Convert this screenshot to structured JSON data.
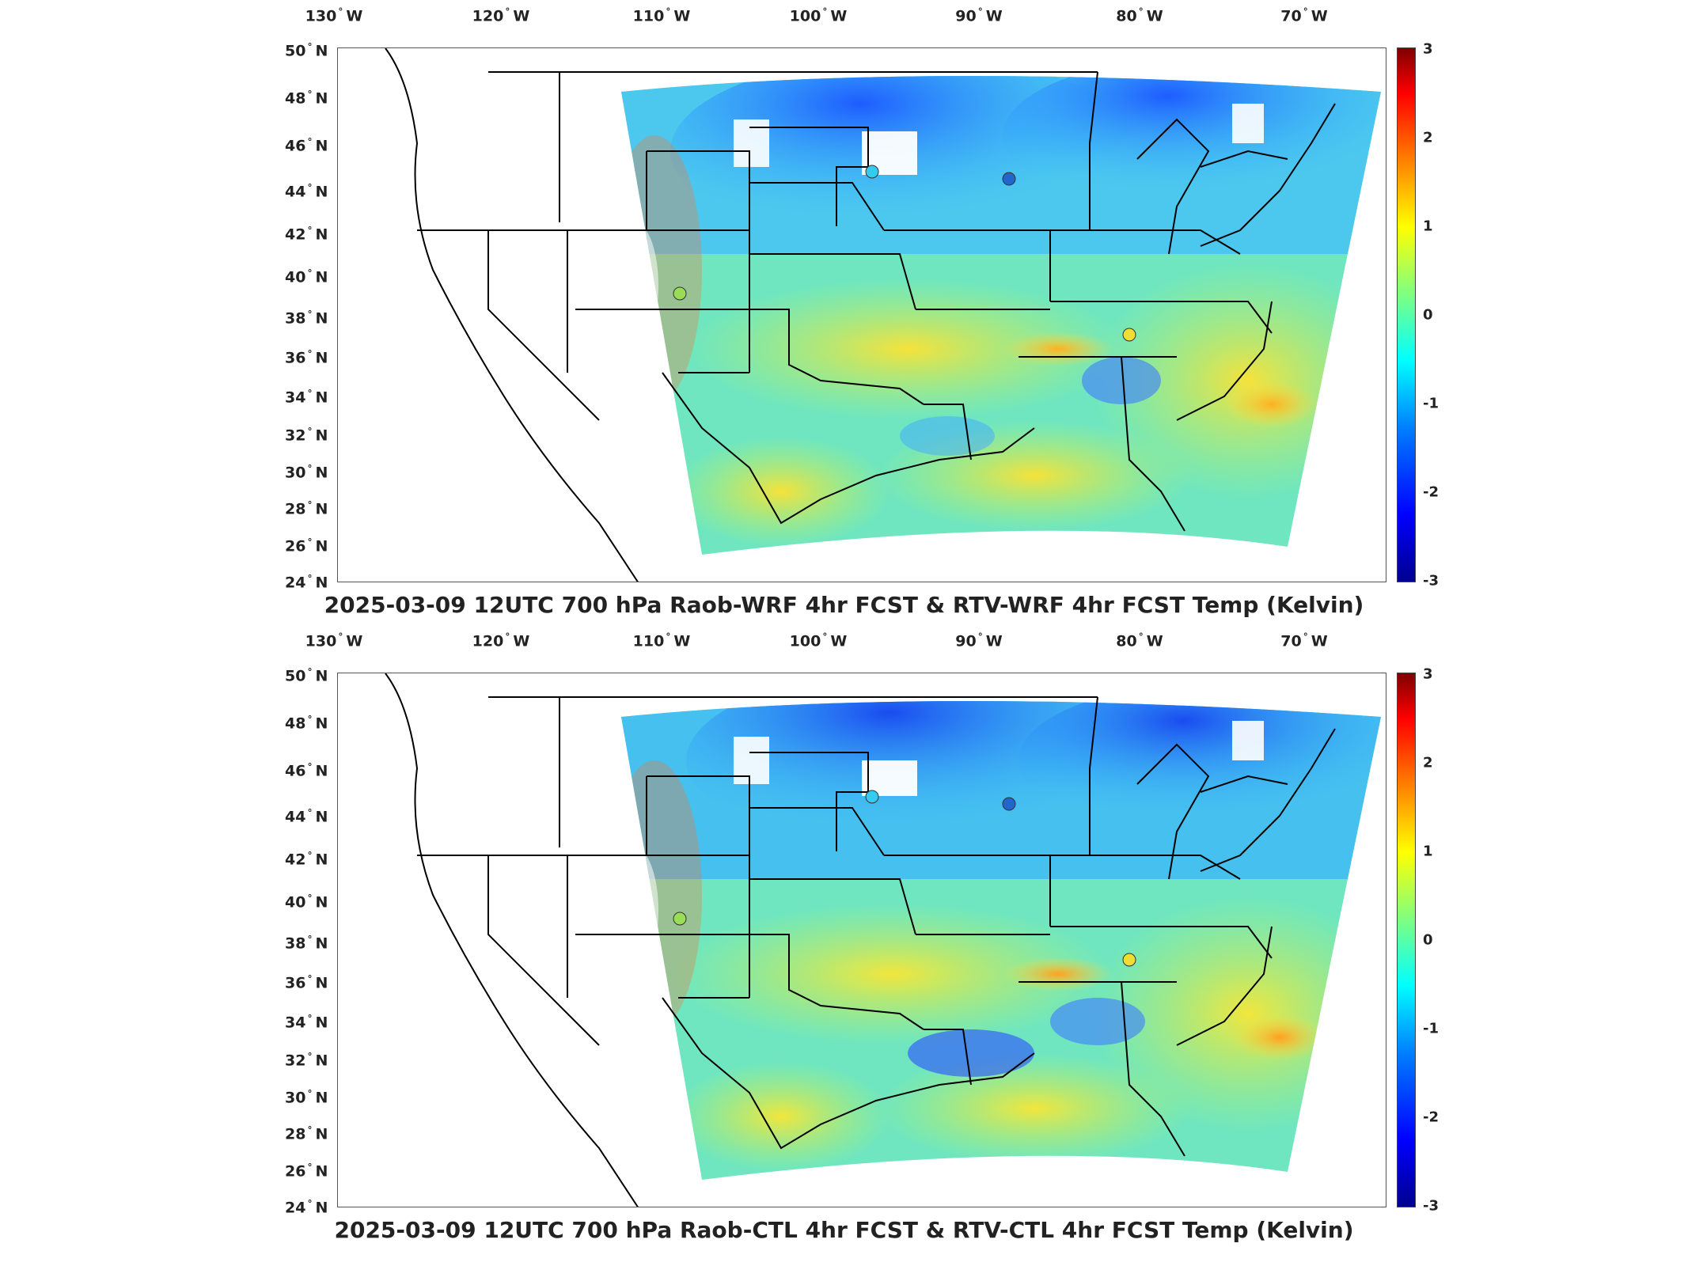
{
  "panels": [
    {
      "title": "2025-03-09 12UTC 700 hPa Raob-WRF 4hr FCST & RTV-WRF 4hr FCST Temp (Kelvin)"
    },
    {
      "title": "2025-03-09 12UTC 700 hPa Raob-CTL 4hr FCST & RTV-CTL 4hr FCST Temp (Kelvin)"
    }
  ],
  "axes": {
    "lon_ticks": [
      "130",
      "120",
      "110",
      "100",
      "90",
      "80",
      "70"
    ],
    "lon_suffix": "W",
    "lat_ticks": [
      "50",
      "48",
      "46",
      "44",
      "42",
      "40",
      "38",
      "36",
      "34",
      "32",
      "30",
      "28",
      "26",
      "24"
    ],
    "lat_suffix": "N",
    "deg_symbol": "°"
  },
  "colorbar": {
    "ticks": [
      "3",
      "2",
      "1",
      "0",
      "-1",
      "-2",
      "-3"
    ],
    "range": [
      -3,
      3
    ],
    "colormap": "jet"
  },
  "colors": {
    "frame": "#555555",
    "state_lines": "#000000"
  },
  "stations": [
    {
      "name": "",
      "color": "#33ccee"
    },
    {
      "name": "",
      "color": "#2266cc"
    },
    {
      "name": "",
      "color": "#99dd55"
    },
    {
      "name": "",
      "color": "#eedd33"
    }
  ]
}
